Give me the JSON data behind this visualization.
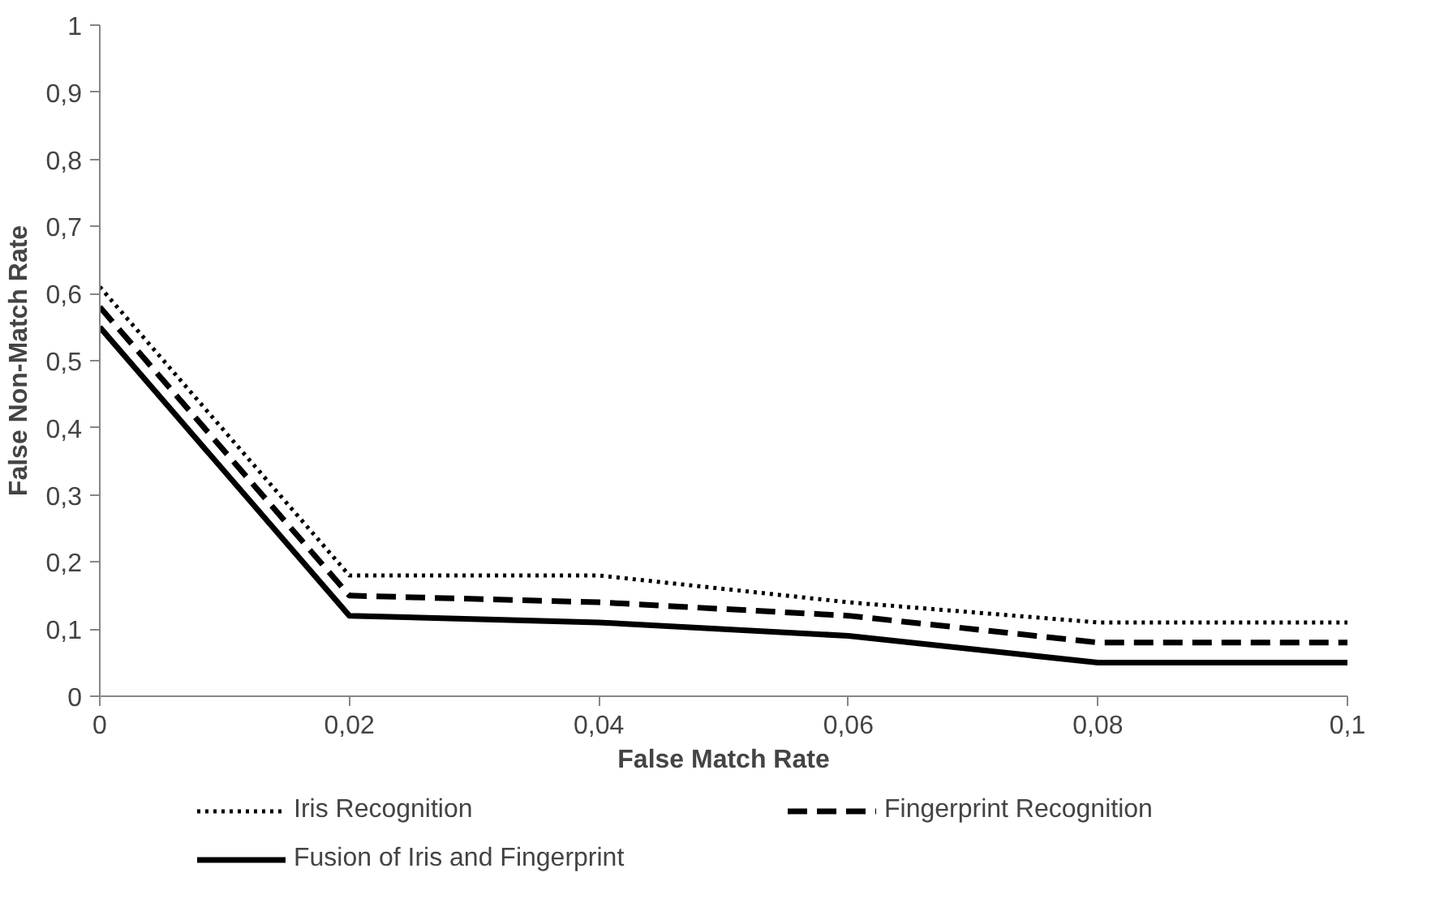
{
  "chart_data": {
    "type": "line",
    "xlabel": "False Match Rate",
    "ylabel": "False Non-Match Rate",
    "x": [
      0,
      0.02,
      0.04,
      0.06,
      0.08,
      0.1
    ],
    "series": [
      {
        "name": "Iris Recognition",
        "color": "#000000",
        "line_style": "dotted",
        "values": [
          0.61,
          0.18,
          0.18,
          0.14,
          0.11,
          0.11
        ]
      },
      {
        "name": "Fingerprint Recognition",
        "color": "#000000",
        "line_style": "dashed",
        "values": [
          0.58,
          0.15,
          0.14,
          0.12,
          0.08,
          0.08
        ]
      },
      {
        "name": "Fusion of Iris and Fingerprint",
        "color": "#000000",
        "line_style": "solid",
        "values": [
          0.55,
          0.12,
          0.11,
          0.09,
          0.05,
          0.05
        ]
      }
    ],
    "xlim": [
      0,
      0.1
    ],
    "ylim": [
      0,
      1
    ],
    "xticks": [
      0,
      {
        "value": 0.02,
        "label": "0,02"
      },
      {
        "value": 0.04,
        "label": "0,04"
      },
      {
        "value": 0.06,
        "label": "0,06"
      },
      {
        "value": 0.08,
        "label": "0,08"
      },
      {
        "value": 0.1,
        "label": "0,1"
      }
    ],
    "yticks": [
      0,
      {
        "value": 0.1,
        "label": "0,1"
      },
      {
        "value": 0.2,
        "label": "0,2"
      },
      {
        "value": 0.3,
        "label": "0,3"
      },
      {
        "value": 0.4,
        "label": "0,4"
      },
      {
        "value": 0.5,
        "label": "0,5"
      },
      {
        "value": 0.6,
        "label": "0,6"
      },
      {
        "value": 0.7,
        "label": "0,7"
      },
      {
        "value": 0.8,
        "label": "0,8"
      },
      {
        "value": 0.9,
        "label": "0,9"
      },
      1
    ],
    "grid": false,
    "legend": "bottom",
    "marker": "none"
  }
}
